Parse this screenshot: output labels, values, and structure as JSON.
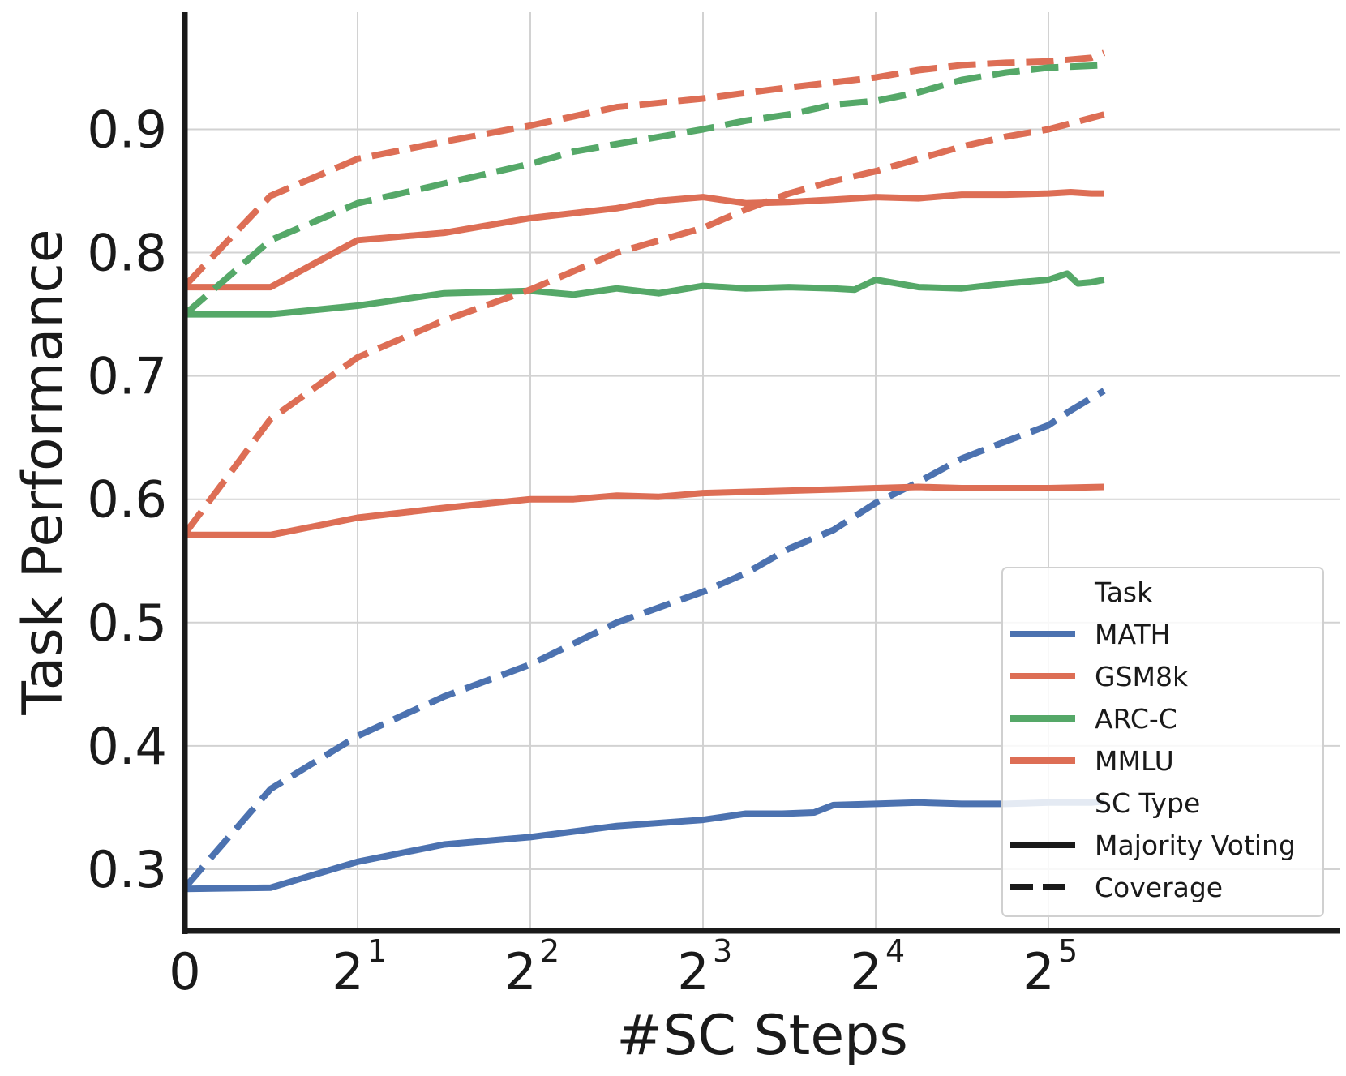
{
  "chart_data": {
    "type": "line",
    "xlabel": "#SC Steps",
    "ylabel": "Task Performance",
    "x_scale": "log2",
    "x_ticks": [
      {
        "value": 1,
        "base": "0",
        "exp": ""
      },
      {
        "value": 2,
        "base": "2",
        "exp": "1"
      },
      {
        "value": 4,
        "base": "2",
        "exp": "2"
      },
      {
        "value": 8,
        "base": "2",
        "exp": "3"
      },
      {
        "value": 16,
        "base": "2",
        "exp": "4"
      },
      {
        "value": 32,
        "base": "2",
        "exp": "5"
      }
    ],
    "y_ticks": [
      "0.3",
      "0.4",
      "0.5",
      "0.6",
      "0.7",
      "0.8",
      "0.9"
    ],
    "ylim": [
      0.25,
      0.995
    ],
    "grid": true,
    "legend": {
      "position": "bottom-right",
      "task_title": "Task",
      "type_title": "SC Type",
      "tasks": [
        {
          "label": "MATH",
          "color": "#4c72b0"
        },
        {
          "label": "GSM8k",
          "color": "#dd6e55"
        },
        {
          "label": "ARC-C",
          "color": "#55a868"
        },
        {
          "label": "MMLU",
          "color": "#dd6e55"
        }
      ],
      "types": [
        {
          "label": "Majority Voting",
          "style": "solid"
        },
        {
          "label": "Coverage",
          "style": "dashed"
        }
      ]
    },
    "series": [
      {
        "task": "MATH",
        "type": "Majority Voting",
        "color": "#4c72b0",
        "points": [
          [
            1,
            0.284
          ],
          [
            1.41,
            0.285
          ],
          [
            2,
            0.306
          ],
          [
            2.83,
            0.32
          ],
          [
            4,
            0.326
          ],
          [
            5.66,
            0.335
          ],
          [
            8,
            0.34
          ],
          [
            9.5,
            0.345
          ],
          [
            11,
            0.345
          ],
          [
            12.5,
            0.346
          ],
          [
            13.5,
            0.352
          ],
          [
            16,
            0.353
          ],
          [
            19,
            0.354
          ],
          [
            22.6,
            0.353
          ],
          [
            27,
            0.353
          ],
          [
            32,
            0.354
          ],
          [
            38,
            0.354
          ],
          [
            40,
            0.355
          ]
        ]
      },
      {
        "task": "MATH",
        "type": "Coverage",
        "color": "#4c72b0",
        "points": [
          [
            1,
            0.285
          ],
          [
            1.41,
            0.365
          ],
          [
            2,
            0.408
          ],
          [
            2.83,
            0.44
          ],
          [
            4,
            0.466
          ],
          [
            5.66,
            0.5
          ],
          [
            8,
            0.525
          ],
          [
            9.5,
            0.54
          ],
          [
            11.3,
            0.56
          ],
          [
            13.5,
            0.575
          ],
          [
            16,
            0.597
          ],
          [
            19,
            0.614
          ],
          [
            22.6,
            0.633
          ],
          [
            27,
            0.647
          ],
          [
            32,
            0.66
          ],
          [
            35,
            0.672
          ],
          [
            38,
            0.682
          ],
          [
            40,
            0.688
          ]
        ]
      },
      {
        "task": "GSM8k",
        "type": "Majority Voting",
        "color": "#dd6e55",
        "points": [
          [
            1,
            0.772
          ],
          [
            1.41,
            0.772
          ],
          [
            2,
            0.81
          ],
          [
            2.83,
            0.816
          ],
          [
            4,
            0.828
          ],
          [
            5.66,
            0.836
          ],
          [
            6.7,
            0.842
          ],
          [
            8,
            0.845
          ],
          [
            9.5,
            0.84
          ],
          [
            11.3,
            0.841
          ],
          [
            13.5,
            0.843
          ],
          [
            16,
            0.845
          ],
          [
            19,
            0.844
          ],
          [
            22.6,
            0.847
          ],
          [
            27,
            0.847
          ],
          [
            32,
            0.848
          ],
          [
            35,
            0.849
          ],
          [
            38,
            0.848
          ],
          [
            40,
            0.848
          ]
        ]
      },
      {
        "task": "GSM8k",
        "type": "Coverage",
        "color": "#dd6e55",
        "points": [
          [
            1,
            0.773
          ],
          [
            1.41,
            0.846
          ],
          [
            2,
            0.876
          ],
          [
            2.83,
            0.89
          ],
          [
            4,
            0.903
          ],
          [
            5.66,
            0.918
          ],
          [
            8,
            0.925
          ],
          [
            11.3,
            0.934
          ],
          [
            16,
            0.942
          ],
          [
            19,
            0.948
          ],
          [
            22.6,
            0.952
          ],
          [
            27,
            0.954
          ],
          [
            32,
            0.955
          ],
          [
            38,
            0.958
          ],
          [
            40,
            0.962
          ]
        ]
      },
      {
        "task": "ARC-C",
        "type": "Majority Voting",
        "color": "#55a868",
        "points": [
          [
            1,
            0.75
          ],
          [
            1.41,
            0.75
          ],
          [
            2,
            0.757
          ],
          [
            2.83,
            0.767
          ],
          [
            4,
            0.769
          ],
          [
            4.76,
            0.766
          ],
          [
            5.66,
            0.771
          ],
          [
            6.7,
            0.767
          ],
          [
            8,
            0.773
          ],
          [
            9.5,
            0.771
          ],
          [
            11.3,
            0.772
          ],
          [
            13.5,
            0.771
          ],
          [
            14.7,
            0.77
          ],
          [
            16,
            0.778
          ],
          [
            19,
            0.772
          ],
          [
            22.6,
            0.771
          ],
          [
            27,
            0.775
          ],
          [
            32,
            0.778
          ],
          [
            34.5,
            0.783
          ],
          [
            36,
            0.775
          ],
          [
            38,
            0.776
          ],
          [
            40,
            0.778
          ]
        ]
      },
      {
        "task": "ARC-C",
        "type": "Coverage",
        "color": "#55a868",
        "points": [
          [
            1,
            0.75
          ],
          [
            1.41,
            0.81
          ],
          [
            2,
            0.84
          ],
          [
            2.83,
            0.856
          ],
          [
            4,
            0.872
          ],
          [
            4.76,
            0.882
          ],
          [
            5.66,
            0.888
          ],
          [
            8,
            0.9
          ],
          [
            9.5,
            0.907
          ],
          [
            11.3,
            0.912
          ],
          [
            13.5,
            0.92
          ],
          [
            16,
            0.923
          ],
          [
            19,
            0.93
          ],
          [
            22.6,
            0.94
          ],
          [
            27,
            0.946
          ],
          [
            32,
            0.95
          ],
          [
            40,
            0.952
          ]
        ]
      },
      {
        "task": "MMLU",
        "type": "Majority Voting",
        "color": "#dd6e55",
        "points": [
          [
            1,
            0.571
          ],
          [
            1.41,
            0.571
          ],
          [
            2,
            0.585
          ],
          [
            2.83,
            0.593
          ],
          [
            4,
            0.6
          ],
          [
            4.76,
            0.6
          ],
          [
            5.66,
            0.603
          ],
          [
            6.7,
            0.602
          ],
          [
            8,
            0.605
          ],
          [
            9.5,
            0.606
          ],
          [
            11.3,
            0.607
          ],
          [
            13.5,
            0.608
          ],
          [
            16,
            0.609
          ],
          [
            19,
            0.61
          ],
          [
            22.6,
            0.609
          ],
          [
            27,
            0.609
          ],
          [
            32,
            0.609
          ],
          [
            40,
            0.61
          ]
        ]
      },
      {
        "task": "MMLU",
        "type": "Coverage",
        "color": "#dd6e55",
        "points": [
          [
            1,
            0.572
          ],
          [
            1.41,
            0.665
          ],
          [
            2,
            0.715
          ],
          [
            2.83,
            0.745
          ],
          [
            4,
            0.77
          ],
          [
            5.66,
            0.8
          ],
          [
            8,
            0.82
          ],
          [
            9.5,
            0.835
          ],
          [
            11.3,
            0.848
          ],
          [
            13.5,
            0.858
          ],
          [
            16,
            0.866
          ],
          [
            19,
            0.876
          ],
          [
            22.6,
            0.886
          ],
          [
            27,
            0.894
          ],
          [
            32,
            0.9
          ],
          [
            40,
            0.912
          ]
        ]
      }
    ]
  }
}
